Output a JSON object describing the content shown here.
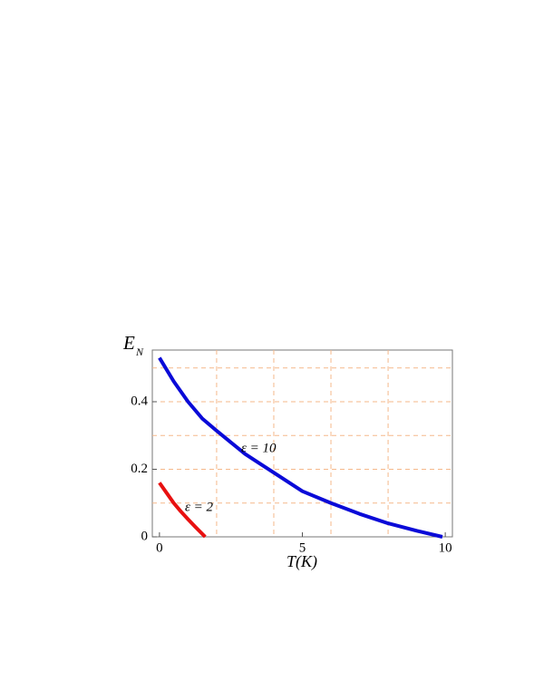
{
  "chart_data": {
    "type": "line",
    "ylabel": "E",
    "ylabel_sub": "N",
    "xlabel": "T(K)",
    "xlim": [
      -0.25,
      10.25
    ],
    "ylim": [
      0,
      0.553
    ],
    "xticks": [
      0,
      5,
      10
    ],
    "yticks": [
      0,
      0.2,
      0.4
    ],
    "xgrid": [
      2,
      4,
      6,
      8
    ],
    "ygrid": [
      0.1,
      0.2,
      0.3,
      0.4,
      0.5
    ],
    "series": [
      {
        "name": "ε = 10",
        "color": "#0a0ad8",
        "x": [
          0,
          0.5,
          1,
          1.5,
          2,
          3,
          4,
          5,
          6,
          7,
          8,
          9,
          9.9
        ],
        "values": [
          0.53,
          0.46,
          0.4,
          0.35,
          0.314,
          0.245,
          0.19,
          0.135,
          0.1,
          0.068,
          0.04,
          0.018,
          0
        ]
      },
      {
        "name": "ε = 2",
        "color": "#e81010",
        "x": [
          0,
          0.25,
          0.5,
          0.75,
          1,
          1.25,
          1.6
        ],
        "values": [
          0.16,
          0.13,
          0.1,
          0.075,
          0.052,
          0.03,
          0
        ]
      }
    ]
  }
}
